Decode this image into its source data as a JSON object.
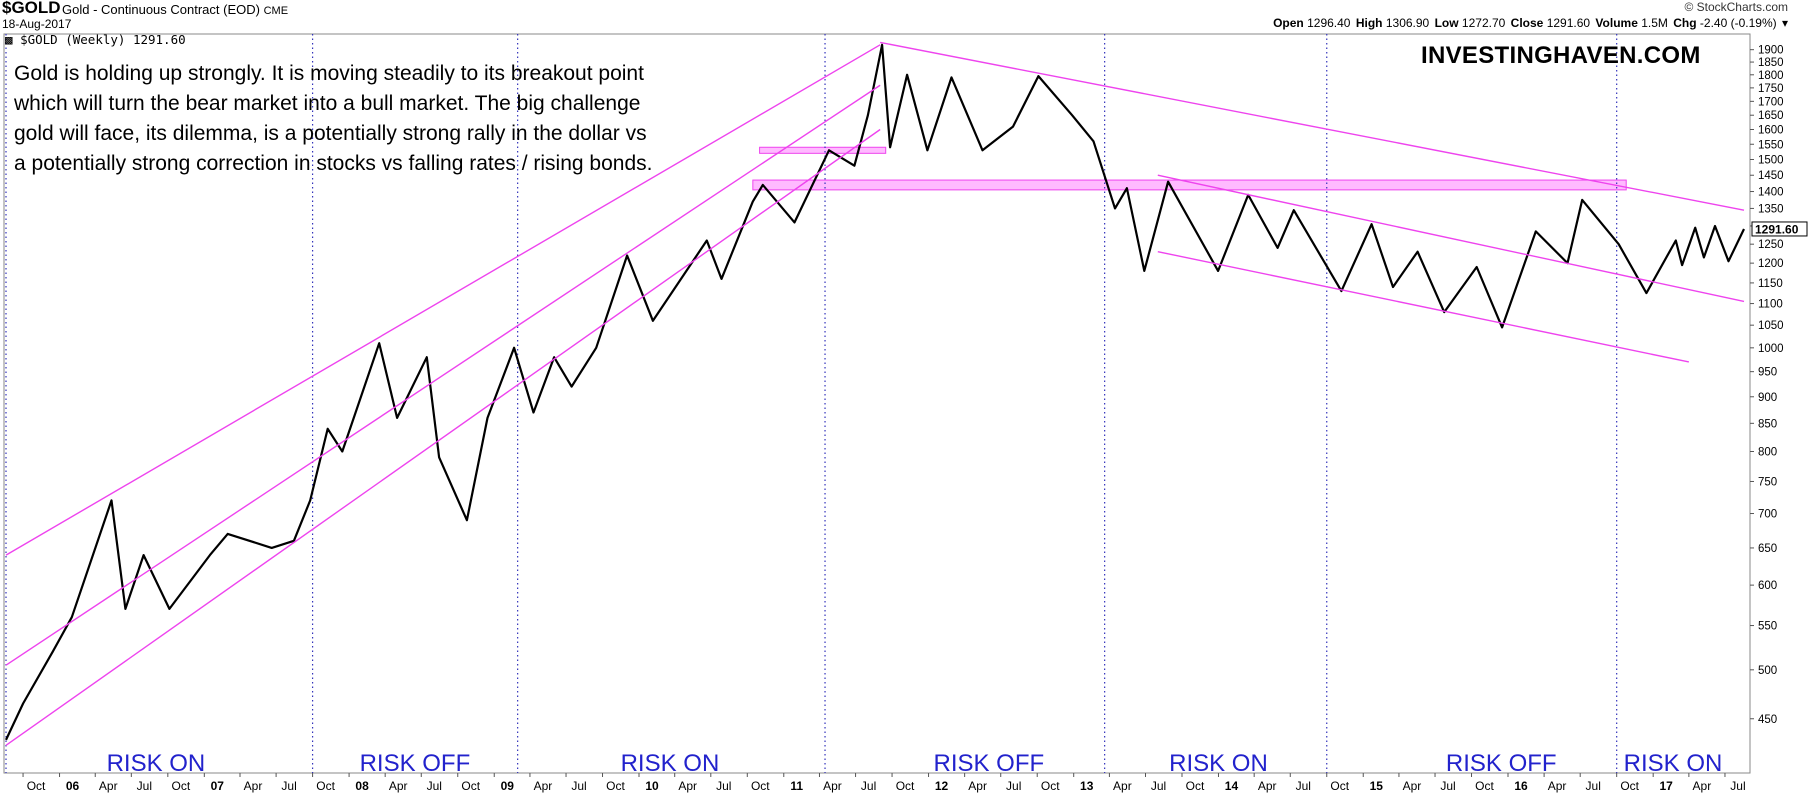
{
  "header": {
    "symbol": "$GOLD",
    "description": "Gold - Continuous Contract (EOD)",
    "exchange": "CME",
    "date": "18-Aug-2017",
    "copyright": "© StockCharts.com",
    "quote": {
      "open_label": "Open",
      "open": "1296.40",
      "high_label": "High",
      "high": "1306.90",
      "low_label": "Low",
      "low": "1272.70",
      "close_label": "Close",
      "close": "1291.60",
      "volume_label": "Volume",
      "volume": "1.5M",
      "chg_label": "Chg",
      "chg": "-2.40 (-0.19%)"
    }
  },
  "legend": "$GOLD (Weekly) 1291.60",
  "annotation": "Gold is holding up strongly. It is moving steadily to its breakout point which will turn the bear market into a bull market. The big challenge gold will face, its dilemma, is a potentially strong rally in the dollar vs a potentially strong correction in stocks vs falling rates / rising bonds.",
  "brand": "INVESTINGHAVEN.COM",
  "colors": {
    "trendline": "#ee44ee",
    "zone": "#ff66ff",
    "risk_label": "#2222cc",
    "divider": "#3333bb",
    "price": "#000000"
  },
  "chart_data": {
    "type": "line",
    "title": "$GOLD (Weekly) 1291.60",
    "series": [
      {
        "name": "$GOLD (Weekly)",
        "points": [
          [
            "2005-08-19",
            430
          ],
          [
            "2005-10-01",
            465
          ],
          [
            "2005-12-15",
            520
          ],
          [
            "2006-02-01",
            560
          ],
          [
            "2006-05-12",
            720
          ],
          [
            "2006-06-16",
            570
          ],
          [
            "2006-08-01",
            640
          ],
          [
            "2006-10-05",
            570
          ],
          [
            "2007-01-15",
            640
          ],
          [
            "2007-03-01",
            670
          ],
          [
            "2007-06-20",
            650
          ],
          [
            "2007-08-15",
            660
          ],
          [
            "2007-09-25",
            720
          ],
          [
            "2007-11-08",
            840
          ],
          [
            "2007-12-15",
            800
          ],
          [
            "2008-03-17",
            1010
          ],
          [
            "2008-05-01",
            860
          ],
          [
            "2008-07-15",
            980
          ],
          [
            "2008-08-15",
            790
          ],
          [
            "2008-10-24",
            690
          ],
          [
            "2008-12-15",
            860
          ],
          [
            "2009-02-20",
            1000
          ],
          [
            "2009-04-10",
            870
          ],
          [
            "2009-06-01",
            980
          ],
          [
            "2009-07-15",
            920
          ],
          [
            "2009-09-15",
            1000
          ],
          [
            "2009-12-02",
            1220
          ],
          [
            "2010-02-05",
            1060
          ],
          [
            "2010-06-21",
            1260
          ],
          [
            "2010-07-28",
            1160
          ],
          [
            "2010-10-15",
            1370
          ],
          [
            "2010-11-09",
            1420
          ],
          [
            "2011-01-28",
            1310
          ],
          [
            "2011-04-25",
            1530
          ],
          [
            "2011-06-28",
            1480
          ],
          [
            "2011-08-01",
            1650
          ],
          [
            "2011-09-06",
            1920
          ],
          [
            "2011-09-26",
            1540
          ],
          [
            "2011-11-08",
            1800
          ],
          [
            "2011-12-29",
            1530
          ],
          [
            "2012-02-28",
            1790
          ],
          [
            "2012-05-16",
            1530
          ],
          [
            "2012-08-01",
            1610
          ],
          [
            "2012-10-04",
            1795
          ],
          [
            "2012-12-28",
            1650
          ],
          [
            "2013-02-20",
            1560
          ],
          [
            "2013-04-15",
            1350
          ],
          [
            "2013-05-15",
            1410
          ],
          [
            "2013-06-28",
            1180
          ],
          [
            "2013-08-27",
            1430
          ],
          [
            "2013-12-31",
            1180
          ],
          [
            "2014-03-17",
            1390
          ],
          [
            "2014-05-30",
            1240
          ],
          [
            "2014-07-10",
            1345
          ],
          [
            "2014-11-07",
            1130
          ],
          [
            "2015-01-22",
            1305
          ],
          [
            "2015-03-17",
            1140
          ],
          [
            "2015-05-18",
            1230
          ],
          [
            "2015-07-24",
            1080
          ],
          [
            "2015-10-14",
            1190
          ],
          [
            "2015-12-17",
            1045
          ],
          [
            "2016-03-11",
            1285
          ],
          [
            "2016-05-30",
            1200
          ],
          [
            "2016-07-06",
            1375
          ],
          [
            "2016-10-06",
            1250
          ],
          [
            "2016-12-15",
            1125
          ],
          [
            "2017-02-27",
            1260
          ],
          [
            "2017-03-15",
            1195
          ],
          [
            "2017-04-17",
            1295
          ],
          [
            "2017-05-09",
            1215
          ],
          [
            "2017-06-06",
            1300
          ],
          [
            "2017-07-10",
            1205
          ],
          [
            "2017-08-18",
            1291.6
          ]
        ]
      }
    ],
    "last_value_label": "1291.60",
    "y_scale": "log",
    "ylim": [
      410,
      1940
    ],
    "y_ticks": [
      "450",
      "500",
      "550",
      "600",
      "650",
      "700",
      "750",
      "800",
      "850",
      "900",
      "950",
      "1000",
      "1050",
      "1100",
      "1150",
      "1200",
      "1250",
      "1300",
      "1350",
      "1400",
      "1450",
      "1500",
      "1550",
      "1600",
      "1650",
      "1700",
      "1750",
      "1800",
      "1850",
      "1900"
    ],
    "x_ticks": [
      {
        "date": "2005-10-01",
        "label": "Oct",
        "bold": false
      },
      {
        "date": "2006-01-01",
        "label": "06",
        "bold": true
      },
      {
        "date": "2006-04-01",
        "label": "Apr",
        "bold": false
      },
      {
        "date": "2006-07-01",
        "label": "Jul",
        "bold": false
      },
      {
        "date": "2006-10-01",
        "label": "Oct",
        "bold": false
      },
      {
        "date": "2007-01-01",
        "label": "07",
        "bold": true
      },
      {
        "date": "2007-04-01",
        "label": "Apr",
        "bold": false
      },
      {
        "date": "2007-07-01",
        "label": "Jul",
        "bold": false
      },
      {
        "date": "2007-10-01",
        "label": "Oct",
        "bold": false
      },
      {
        "date": "2008-01-01",
        "label": "08",
        "bold": true
      },
      {
        "date": "2008-04-01",
        "label": "Apr",
        "bold": false
      },
      {
        "date": "2008-07-01",
        "label": "Jul",
        "bold": false
      },
      {
        "date": "2008-10-01",
        "label": "Oct",
        "bold": false
      },
      {
        "date": "2009-01-01",
        "label": "09",
        "bold": true
      },
      {
        "date": "2009-04-01",
        "label": "Apr",
        "bold": false
      },
      {
        "date": "2009-07-01",
        "label": "Jul",
        "bold": false
      },
      {
        "date": "2009-10-01",
        "label": "Oct",
        "bold": false
      },
      {
        "date": "2010-01-01",
        "label": "10",
        "bold": true
      },
      {
        "date": "2010-04-01",
        "label": "Apr",
        "bold": false
      },
      {
        "date": "2010-07-01",
        "label": "Jul",
        "bold": false
      },
      {
        "date": "2010-10-01",
        "label": "Oct",
        "bold": false
      },
      {
        "date": "2011-01-01",
        "label": "11",
        "bold": true
      },
      {
        "date": "2011-04-01",
        "label": "Apr",
        "bold": false
      },
      {
        "date": "2011-07-01",
        "label": "Jul",
        "bold": false
      },
      {
        "date": "2011-10-01",
        "label": "Oct",
        "bold": false
      },
      {
        "date": "2012-01-01",
        "label": "12",
        "bold": true
      },
      {
        "date": "2012-04-01",
        "label": "Apr",
        "bold": false
      },
      {
        "date": "2012-07-01",
        "label": "Jul",
        "bold": false
      },
      {
        "date": "2012-10-01",
        "label": "Oct",
        "bold": false
      },
      {
        "date": "2013-01-01",
        "label": "13",
        "bold": true
      },
      {
        "date": "2013-04-01",
        "label": "Apr",
        "bold": false
      },
      {
        "date": "2013-07-01",
        "label": "Jul",
        "bold": false
      },
      {
        "date": "2013-10-01",
        "label": "Oct",
        "bold": false
      },
      {
        "date": "2014-01-01",
        "label": "14",
        "bold": true
      },
      {
        "date": "2014-04-01",
        "label": "Apr",
        "bold": false
      },
      {
        "date": "2014-07-01",
        "label": "Jul",
        "bold": false
      },
      {
        "date": "2014-10-01",
        "label": "Oct",
        "bold": false
      },
      {
        "date": "2015-01-01",
        "label": "15",
        "bold": true
      },
      {
        "date": "2015-04-01",
        "label": "Apr",
        "bold": false
      },
      {
        "date": "2015-07-01",
        "label": "Jul",
        "bold": false
      },
      {
        "date": "2015-10-01",
        "label": "Oct",
        "bold": false
      },
      {
        "date": "2016-01-01",
        "label": "16",
        "bold": true
      },
      {
        "date": "2016-04-01",
        "label": "Apr",
        "bold": false
      },
      {
        "date": "2016-07-01",
        "label": "Jul",
        "bold": false
      },
      {
        "date": "2016-10-01",
        "label": "Oct",
        "bold": false
      },
      {
        "date": "2017-01-01",
        "label": "17",
        "bold": true
      },
      {
        "date": "2017-04-01",
        "label": "Apr",
        "bold": false
      },
      {
        "date": "2017-07-01",
        "label": "Jul",
        "bold": false
      }
    ],
    "trendlines": [
      {
        "from": [
          "2005-08-19",
          640
        ],
        "to": [
          "2011-09-01",
          1920
        ]
      },
      {
        "from": [
          "2005-08-19",
          505
        ],
        "to": [
          "2011-09-01",
          1760
        ]
      },
      {
        "from": [
          "2005-08-19",
          425
        ],
        "to": [
          "2011-09-01",
          1600
        ]
      },
      {
        "from": [
          "2011-09-01",
          1930
        ],
        "to": [
          "2017-08-18",
          1345
        ]
      },
      {
        "from": [
          "2013-08-01",
          1450
        ],
        "to": [
          "2017-08-18",
          1105
        ]
      },
      {
        "from": [
          "2013-08-01",
          1230
        ],
        "to": [
          "2017-04-01",
          970
        ]
      }
    ],
    "zones": [
      {
        "from": "2010-11-01",
        "to": "2011-09-15",
        "low": 1520,
        "high": 1540
      },
      {
        "from": "2010-10-15",
        "to": "2016-10-25",
        "low": 1405,
        "high": 1435
      }
    ],
    "dividers": [
      "2005-08-19",
      "2007-10-01",
      "2009-03-01",
      "2011-04-15",
      "2013-03-20",
      "2014-10-01",
      "2016-10-01"
    ],
    "regimes": [
      {
        "label": "RISK ON",
        "date": "2006-09-01"
      },
      {
        "label": "RISK OFF",
        "date": "2008-06-15"
      },
      {
        "label": "RISK ON",
        "date": "2010-03-20"
      },
      {
        "label": "RISK OFF",
        "date": "2012-06-01"
      },
      {
        "label": "RISK ON",
        "date": "2014-01-01"
      },
      {
        "label": "RISK OFF",
        "date": "2015-12-15"
      },
      {
        "label": "RISK ON",
        "date": "2017-02-20"
      }
    ]
  }
}
